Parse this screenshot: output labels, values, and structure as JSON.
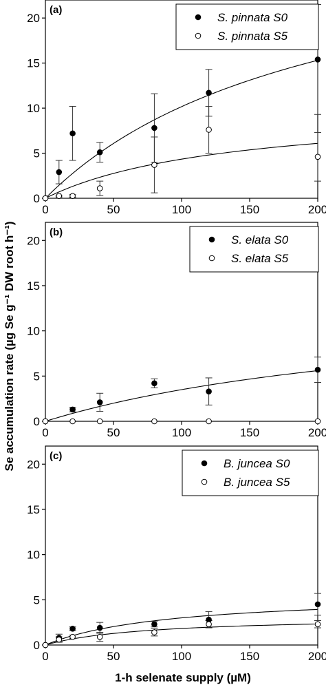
{
  "ylabel": "Se accumulation rate (µg Se g⁻¹ DW root h⁻¹)",
  "xlabel": "1-h selenate supply (µM)",
  "chart_data": [
    {
      "type": "scatter",
      "panel_label": "(a)",
      "xlim": [
        0,
        200
      ],
      "ylim": [
        0,
        22
      ],
      "xticks": [
        0,
        50,
        100,
        150,
        200
      ],
      "yticks": [
        0,
        5,
        10,
        15,
        20
      ],
      "legend_position": "top-right",
      "series": [
        {
          "name": "S. pinnata S0",
          "marker": "filled",
          "x": [
            0,
            10,
            20,
            40,
            80,
            120,
            200
          ],
          "y": [
            0,
            2.9,
            7.2,
            5.1,
            7.8,
            11.7,
            15.4
          ],
          "err": [
            0,
            1.3,
            3.0,
            1.1,
            3.8,
            2.6,
            6.1
          ],
          "fit": {
            "vmax": 31.0,
            "km": 205
          }
        },
        {
          "name": "S. pinnata S5",
          "marker": "open",
          "x": [
            0,
            10,
            20,
            40,
            80,
            120,
            200
          ],
          "y": [
            0,
            0.25,
            0.25,
            1.1,
            3.7,
            7.6,
            4.6
          ],
          "err": [
            0,
            0.1,
            0.15,
            0.8,
            3.1,
            2.6,
            2.7
          ],
          "fit": {
            "vmax": 10.2,
            "km": 135
          }
        }
      ]
    },
    {
      "type": "scatter",
      "panel_label": "(b)",
      "xlim": [
        0,
        200
      ],
      "ylim": [
        0,
        22
      ],
      "xticks": [
        0,
        50,
        100,
        150,
        200
      ],
      "yticks": [
        0,
        5,
        10,
        15,
        20
      ],
      "legend_position": "top-right",
      "series": [
        {
          "name": "S. elata S0",
          "marker": "filled",
          "x": [
            0,
            20,
            40,
            80,
            120,
            200
          ],
          "y": [
            0,
            1.3,
            2.1,
            4.2,
            3.3,
            5.7
          ],
          "err": [
            0,
            0.25,
            1.0,
            0.5,
            1.5,
            1.4
          ],
          "fit": {
            "vmax": 14.0,
            "km": 300
          }
        },
        {
          "name": "S. elata S5",
          "marker": "open",
          "x": [
            0,
            20,
            40,
            80,
            120,
            200
          ],
          "y": [
            0,
            0,
            0,
            0,
            0,
            0
          ],
          "err": [
            0,
            0,
            0,
            0,
            0,
            0
          ],
          "fit": null
        }
      ]
    },
    {
      "type": "scatter",
      "panel_label": "(c)",
      "xlim": [
        0,
        200
      ],
      "ylim": [
        0,
        22
      ],
      "xticks": [
        0,
        50,
        100,
        150,
        200
      ],
      "yticks": [
        0,
        5,
        10,
        15,
        20
      ],
      "legend_position": "top-right",
      "series": [
        {
          "name": "B. juncea S0",
          "marker": "filled",
          "x": [
            0,
            10,
            20,
            40,
            80,
            120,
            200
          ],
          "y": [
            0,
            0.8,
            1.8,
            1.9,
            2.3,
            2.8,
            4.5
          ],
          "err": [
            0,
            0.4,
            0.2,
            0.6,
            0.3,
            0.9,
            1.2
          ],
          "fit": {
            "vmax": 5.7,
            "km": 90
          }
        },
        {
          "name": "B. juncea S5",
          "marker": "open",
          "x": [
            0,
            10,
            20,
            40,
            80,
            120,
            200
          ],
          "y": [
            0,
            0.6,
            0.9,
            0.9,
            1.4,
            2.3,
            2.3
          ],
          "err": [
            0,
            0.3,
            0.2,
            0.5,
            0.4,
            0.4,
            0.4
          ],
          "fit": {
            "vmax": 3.2,
            "km": 75
          }
        }
      ]
    }
  ]
}
